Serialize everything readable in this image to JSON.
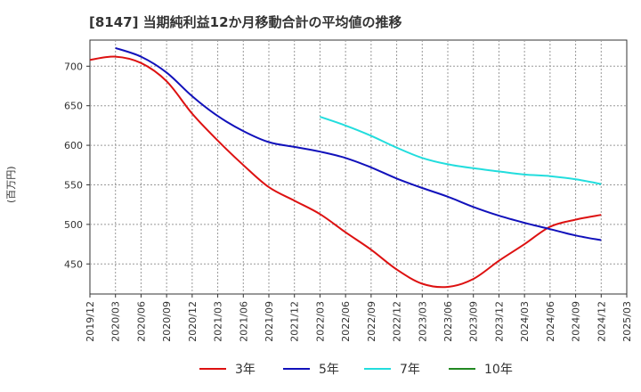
{
  "chart_data": {
    "type": "line",
    "title": "[8147]  当期純利益12か月移動合計の平均値の推移",
    "ylabel": "(百万円)",
    "xlabel": "",
    "x_ticks": [
      "2019/12",
      "2020/03",
      "2020/06",
      "2020/09",
      "2020/12",
      "2021/03",
      "2021/06",
      "2021/09",
      "2021/12",
      "2022/03",
      "2022/06",
      "2022/09",
      "2022/12",
      "2023/03",
      "2023/06",
      "2023/09",
      "2023/12",
      "2024/03",
      "2024/06",
      "2024/09",
      "2024/12",
      "2025/03"
    ],
    "y_ticks": [
      450,
      500,
      550,
      600,
      650,
      700
    ],
    "ylim": [
      412,
      733
    ],
    "grid": true,
    "legend_position": "bottom",
    "series": [
      {
        "name": "3年",
        "color": "#dd1111",
        "x": [
          "2019/12",
          "2020/03",
          "2020/06",
          "2020/09",
          "2020/12",
          "2021/03",
          "2021/06",
          "2021/09",
          "2021/12",
          "2022/03",
          "2022/06",
          "2022/09",
          "2022/12",
          "2023/03",
          "2023/06",
          "2023/09",
          "2023/12",
          "2024/03",
          "2024/06",
          "2024/09",
          "2024/12"
        ],
        "values": [
          708,
          712,
          704,
          681,
          640,
          606,
          575,
          547,
          530,
          513,
          490,
          468,
          443,
          425,
          421,
          431,
          454,
          475,
          497,
          506,
          512
        ]
      },
      {
        "name": "5年",
        "color": "#1111bb",
        "x": [
          "2020/03",
          "2020/06",
          "2020/09",
          "2020/12",
          "2021/03",
          "2021/06",
          "2021/09",
          "2021/12",
          "2022/03",
          "2022/06",
          "2022/09",
          "2022/12",
          "2023/03",
          "2023/06",
          "2023/09",
          "2023/12",
          "2024/03",
          "2024/06",
          "2024/09",
          "2024/12"
        ],
        "values": [
          723,
          712,
          692,
          662,
          637,
          618,
          604,
          598,
          592,
          584,
          572,
          558,
          546,
          535,
          522,
          511,
          502,
          494,
          486,
          480
        ]
      },
      {
        "name": "7年",
        "color": "#22dddd",
        "x": [
          "2022/03",
          "2022/06",
          "2022/09",
          "2022/12",
          "2023/03",
          "2023/06",
          "2023/09",
          "2023/12",
          "2024/03",
          "2024/06",
          "2024/09",
          "2024/12"
        ],
        "values": [
          636,
          625,
          612,
          597,
          584,
          576,
          571,
          567,
          563,
          561,
          557,
          551
        ]
      },
      {
        "name": "10年",
        "color": "#228822",
        "x": [],
        "values": []
      }
    ]
  }
}
